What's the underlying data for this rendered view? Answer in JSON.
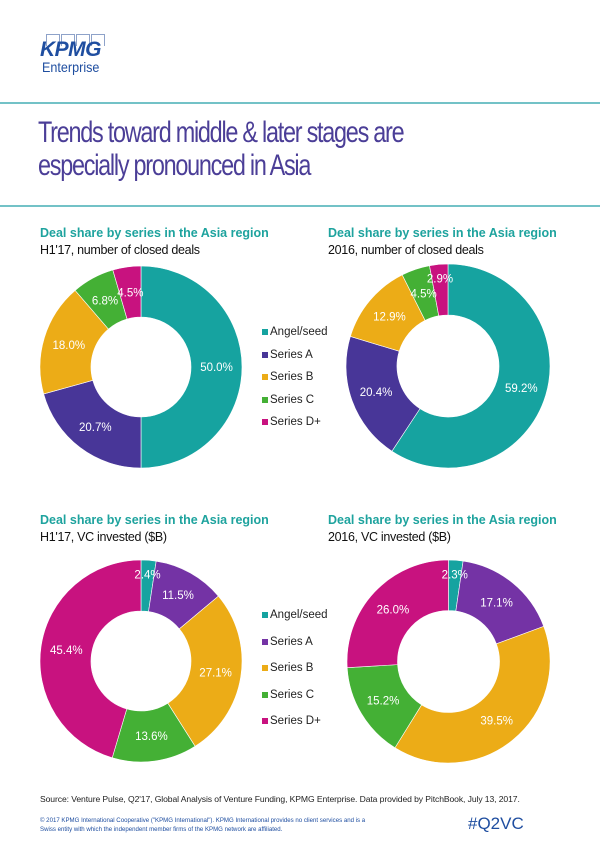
{
  "brand": {
    "logo_text": "KPMG",
    "logo_subtext": "Enterprise",
    "color": "#1f4ea0"
  },
  "page_title_lines": [
    "Trends toward middle & later stages are",
    "especially pronounced in Asia"
  ],
  "legend": {
    "items": [
      "Angel/seed",
      "Series A",
      "Series B",
      "Series C",
      "Series D+"
    ]
  },
  "chart_data": [
    {
      "type": "pie",
      "variant": "donut",
      "title": "Deal share by series in the Asia region",
      "subtitle": "H1'17, number of closed deals",
      "categories": [
        "Angel/seed",
        "Series A",
        "Series B",
        "Series C",
        "Series D+"
      ],
      "values": [
        50.0,
        20.7,
        18.0,
        6.8,
        4.5
      ],
      "labels": [
        "50.0%",
        "20.7%",
        "18.0%",
        "6.8%",
        "4.5%"
      ],
      "colors": [
        "#16a3a0",
        "#483698",
        "#ecac17",
        "#44b035",
        "#c8127f"
      ],
      "legend_position": "right"
    },
    {
      "type": "pie",
      "variant": "donut",
      "title": "Deal share by series in the Asia region",
      "subtitle": "2016, number of closed deals",
      "categories": [
        "Angel/seed",
        "Series A",
        "Series B",
        "Series C",
        "Series D+"
      ],
      "values": [
        59.2,
        20.4,
        12.9,
        4.5,
        2.9
      ],
      "labels": [
        "59.2%",
        "20.4%",
        "12.9%",
        "4.5%",
        "2.9%"
      ],
      "colors": [
        "#16a3a0",
        "#483698",
        "#ecac17",
        "#44b035",
        "#c8127f"
      ],
      "legend_position": "left"
    },
    {
      "type": "pie",
      "variant": "donut",
      "title": "Deal share by series in the Asia region",
      "subtitle": "H1'17, VC invested ($B)",
      "categories": [
        "Angel/seed",
        "Series A",
        "Series B",
        "Series C",
        "Series D+"
      ],
      "values": [
        2.4,
        11.5,
        27.1,
        13.6,
        45.4
      ],
      "labels": [
        "2.4%",
        "11.5%",
        "27.1%",
        "13.6%",
        "45.4%"
      ],
      "colors": [
        "#16a3a0",
        "#7433a5",
        "#ecac17",
        "#44b035",
        "#c8127f"
      ],
      "legend_position": "right"
    },
    {
      "type": "pie",
      "variant": "donut",
      "title": "Deal share by series in the Asia region",
      "subtitle": "2016, VC invested ($B)",
      "categories": [
        "Angel/seed",
        "Series A",
        "Series B",
        "Series C",
        "Series D+"
      ],
      "values": [
        2.3,
        17.1,
        39.5,
        15.2,
        26.0
      ],
      "labels": [
        "2.3%",
        "17.1%",
        "39.5%",
        "15.2%",
        "26.0%"
      ],
      "colors": [
        "#16a3a0",
        "#7433a5",
        "#ecac17",
        "#44b035",
        "#c8127f"
      ],
      "legend_position": "left"
    }
  ],
  "footer": {
    "source": "Source: Venture Pulse, Q2'17, Global Analysis of Venture Funding, KPMG Enterprise. Data provided by PitchBook, July 13, 2017.",
    "copyright": "© 2017 KPMG International Cooperative (\"KPMG International\"). KPMG International provides no client services and is a Swiss entity with which the independent member firms of the KPMG network are affiliated.",
    "hashtag": "#Q2VC"
  }
}
